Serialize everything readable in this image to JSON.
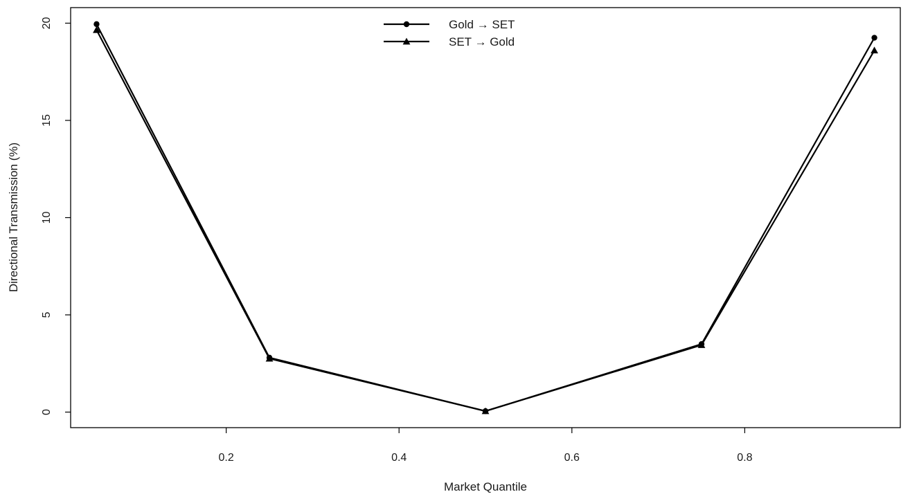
{
  "chart_data": {
    "type": "line",
    "title": "",
    "xlabel": "Market Quantile",
    "ylabel": "Directional Transmission (%)",
    "x": [
      0.05,
      0.25,
      0.5,
      0.75,
      0.95
    ],
    "xlim": [
      0.02,
      0.98
    ],
    "ylim": [
      -0.8,
      20.8
    ],
    "xticks": [
      0.2,
      0.4,
      0.6,
      0.8
    ],
    "xtick_labels": [
      "0.2",
      "0.4",
      "0.6",
      "0.8"
    ],
    "yticks": [
      0,
      5,
      10,
      15,
      20
    ],
    "ytick_labels": [
      "0",
      "5",
      "10",
      "15",
      "20"
    ],
    "grid": false,
    "legend_position": "top-center",
    "series": [
      {
        "name": "Gold → SET",
        "marker": "circle",
        "color": "#000000",
        "values": [
          19.95,
          2.8,
          0.05,
          3.5,
          19.25
        ]
      },
      {
        "name": "SET → Gold",
        "marker": "triangle",
        "color": "#000000",
        "values": [
          19.65,
          2.75,
          0.05,
          3.45,
          18.6
        ]
      }
    ]
  }
}
